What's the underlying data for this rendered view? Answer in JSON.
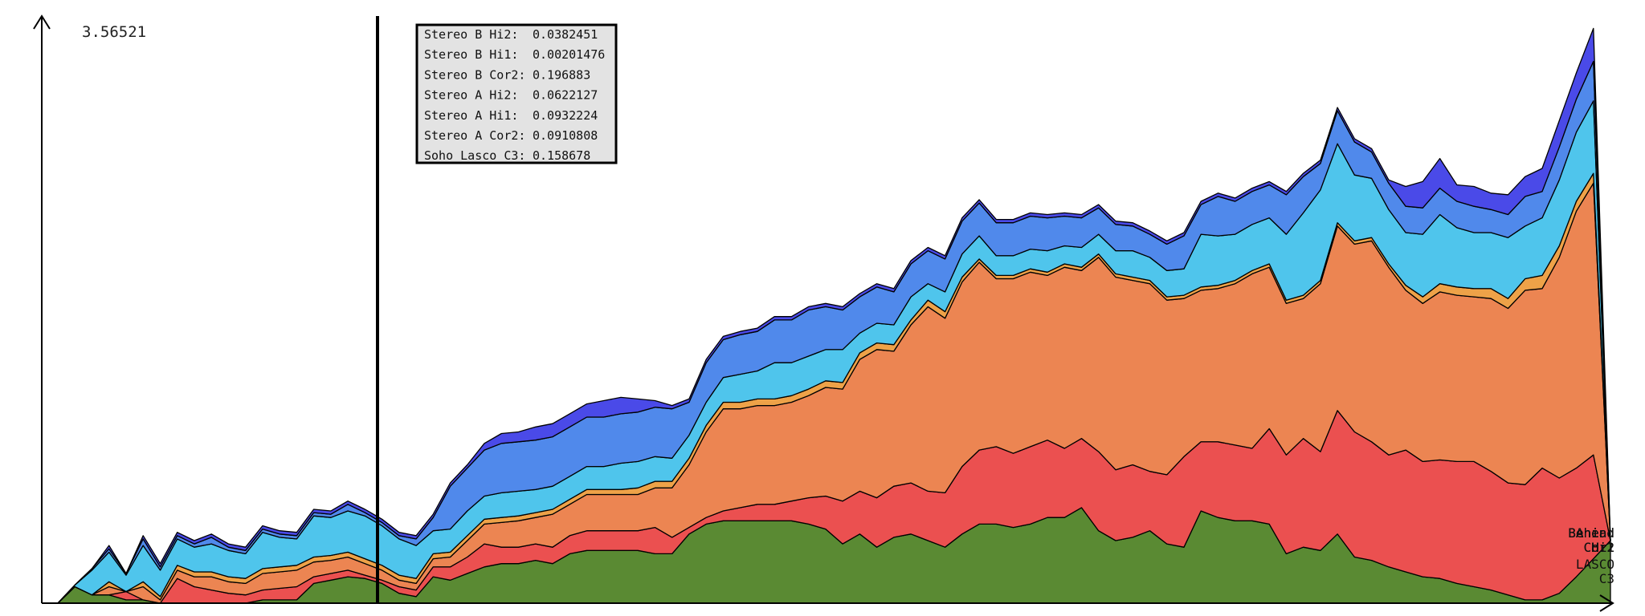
{
  "chart_data": {
    "type": "area",
    "stacked": true,
    "y_max_label": "3.56521",
    "ylim": [
      0,
      3.56521
    ],
    "x_steps": 80,
    "series": [
      {
        "key": "lasco_c3",
        "label_lines": [
          "LASCO",
          "C3"
        ],
        "color": "#5a8a33",
        "values": [
          0,
          0.1,
          0.05,
          0.05,
          0.02,
          0.02,
          0,
          0,
          0,
          0,
          0,
          0,
          0.02,
          0.02,
          0.02,
          0.12,
          0.14,
          0.16,
          0.15,
          0.12,
          0.06,
          0.04,
          0.16,
          0.14,
          0.18,
          0.22,
          0.24,
          0.24,
          0.26,
          0.24,
          0.3,
          0.32,
          0.32,
          0.32,
          0.32,
          0.3,
          0.3,
          0.42,
          0.48,
          0.5,
          0.5,
          0.5,
          0.5,
          0.5,
          0.48,
          0.45,
          0.36,
          0.42,
          0.34,
          0.4,
          0.42,
          0.38,
          0.34,
          0.42,
          0.48,
          0.48,
          0.46,
          0.48,
          0.52,
          0.52,
          0.58,
          0.44,
          0.38,
          0.4,
          0.44,
          0.36,
          0.34,
          0.56,
          0.52,
          0.5,
          0.5,
          0.48,
          0.3,
          0.34,
          0.32,
          0.42,
          0.28,
          0.26,
          0.22,
          0.19,
          0.16,
          0.15,
          0.12,
          0.1,
          0.08,
          0.05,
          0.02,
          0.02,
          0.06,
          0.16,
          0.27,
          0.38
        ]
      },
      {
        "key": "ahead_cor2",
        "label_lines": [
          "Ahead",
          "Cor2"
        ],
        "color": "#eb5050",
        "values": [
          0,
          0,
          0,
          0,
          0.05,
          0,
          0,
          0.15,
          0.1,
          0.08,
          0.06,
          0.05,
          0.06,
          0.07,
          0.08,
          0.04,
          0.04,
          0.04,
          0.02,
          0.02,
          0.04,
          0.04,
          0.06,
          0.08,
          0.1,
          0.14,
          0.1,
          0.1,
          0.1,
          0.1,
          0.11,
          0.12,
          0.12,
          0.12,
          0.12,
          0.16,
          0.1,
          0.04,
          0.04,
          0.06,
          0.08,
          0.1,
          0.1,
          0.12,
          0.16,
          0.2,
          0.26,
          0.26,
          0.3,
          0.31,
          0.31,
          0.3,
          0.33,
          0.41,
          0.45,
          0.47,
          0.45,
          0.47,
          0.47,
          0.42,
          0.42,
          0.48,
          0.43,
          0.44,
          0.36,
          0.42,
          0.55,
          0.42,
          0.46,
          0.46,
          0.44,
          0.58,
          0.6,
          0.66,
          0.6,
          0.75,
          0.76,
          0.72,
          0.68,
          0.74,
          0.7,
          0.72,
          0.74,
          0.76,
          0.72,
          0.68,
          0.7,
          0.8,
          0.7,
          0.66,
          0.63
        ]
      },
      {
        "key": "ahead_hi1",
        "label_lines": [
          "Ahead",
          "Hi1"
        ],
        "color": "#ec8552",
        "values": [
          0,
          0,
          0,
          0.05,
          0,
          0.08,
          0.02,
          0.05,
          0.06,
          0.08,
          0.07,
          0.07,
          0.1,
          0.1,
          0.1,
          0.09,
          0.08,
          0.08,
          0.07,
          0.06,
          0.04,
          0.04,
          0.05,
          0.06,
          0.1,
          0.12,
          0.15,
          0.16,
          0.16,
          0.2,
          0.19,
          0.22,
          0.22,
          0.22,
          0.22,
          0.24,
          0.3,
          0.38,
          0.52,
          0.62,
          0.6,
          0.6,
          0.6,
          0.6,
          0.62,
          0.66,
          0.68,
          0.8,
          0.9,
          0.82,
          0.96,
          1.12,
          1.06,
          1.12,
          1.14,
          1.02,
          1.06,
          1.06,
          1,
          1.1,
          1.02,
          1.18,
          1.17,
          1.12,
          1.14,
          1.06,
          0.96,
          0.92,
          0.93,
          0.98,
          1.06,
          0.98,
          0.92,
          0.85,
          1.02,
          1.12,
          1.14,
          1.22,
          1.14,
          0.97,
          0.96,
          1.02,
          1.01,
          1.0,
          1.05,
          1.06,
          1.18,
          1.09,
          1.34,
          1.56,
          1.65
        ]
      },
      {
        "key": "ahead_hi2",
        "label_lines": [
          "Ahead",
          "Hi2"
        ],
        "color": "#eea248",
        "values": [
          0,
          0,
          0,
          0.03,
          0,
          0.03,
          0.02,
          0.03,
          0.03,
          0.03,
          0.03,
          0.03,
          0.03,
          0.03,
          0.03,
          0.03,
          0.03,
          0.03,
          0.03,
          0.03,
          0.03,
          0.03,
          0.03,
          0.03,
          0.03,
          0.03,
          0.03,
          0.03,
          0.03,
          0.03,
          0.03,
          0.03,
          0.03,
          0.03,
          0.04,
          0.04,
          0.04,
          0.04,
          0.04,
          0.04,
          0.04,
          0.04,
          0.04,
          0.04,
          0.04,
          0.04,
          0.04,
          0.04,
          0.04,
          0.04,
          0.03,
          0.04,
          0.04,
          0.03,
          0.02,
          0.02,
          0.02,
          0.02,
          0.02,
          0.02,
          0.02,
          0.02,
          0.02,
          0.02,
          0.02,
          0.02,
          0.02,
          0.02,
          0.02,
          0.02,
          0.02,
          0.02,
          0.02,
          0.02,
          0.02,
          0.02,
          0.02,
          0.02,
          0.02,
          0.03,
          0.04,
          0.05,
          0.05,
          0.05,
          0.06,
          0.06,
          0.07,
          0.08,
          0.07,
          0.06,
          0.06
        ]
      },
      {
        "key": "behind_cor2",
        "label_lines": [
          "Behind",
          "Cor2"
        ],
        "color": "#4fc5ec",
        "values": [
          0,
          0.01,
          0.15,
          0.18,
          0.1,
          0.22,
          0.16,
          0.16,
          0.15,
          0.17,
          0.16,
          0.15,
          0.22,
          0.18,
          0.16,
          0.25,
          0.23,
          0.25,
          0.26,
          0.24,
          0.22,
          0.2,
          0.14,
          0.14,
          0.15,
          0.14,
          0.15,
          0.15,
          0.14,
          0.14,
          0.14,
          0.14,
          0.14,
          0.16,
          0.16,
          0.15,
          0.14,
          0.14,
          0.14,
          0.15,
          0.17,
          0.17,
          0.22,
          0.2,
          0.2,
          0.19,
          0.2,
          0.12,
          0.12,
          0.12,
          0.14,
          0.1,
          0.12,
          0.14,
          0.14,
          0.12,
          0.12,
          0.12,
          0.13,
          0.11,
          0.12,
          0.12,
          0.14,
          0.16,
          0.14,
          0.16,
          0.16,
          0.32,
          0.3,
          0.28,
          0.28,
          0.28,
          0.4,
          0.5,
          0.55,
          0.48,
          0.4,
          0.36,
          0.33,
          0.32,
          0.38,
          0.42,
          0.36,
          0.34,
          0.34,
          0.37,
          0.32,
          0.35,
          0.4,
          0.42,
          0.44
        ]
      },
      {
        "key": "behind_hi1",
        "label_lines": [
          "Behind",
          "Hi1"
        ],
        "color": "#5089eb",
        "values": [
          0,
          0,
          0.01,
          0.02,
          0.01,
          0.04,
          0.02,
          0.02,
          0.02,
          0.04,
          0.02,
          0.02,
          0.02,
          0.02,
          0.02,
          0.02,
          0.02,
          0.04,
          0.02,
          0.02,
          0.02,
          0.04,
          0.08,
          0.26,
          0.26,
          0.28,
          0.3,
          0.3,
          0.3,
          0.3,
          0.3,
          0.3,
          0.3,
          0.3,
          0.3,
          0.3,
          0.3,
          0.2,
          0.24,
          0.23,
          0.24,
          0.24,
          0.26,
          0.26,
          0.28,
          0.26,
          0.24,
          0.22,
          0.22,
          0.2,
          0.2,
          0.2,
          0.2,
          0.2,
          0.2,
          0.2,
          0.2,
          0.2,
          0.2,
          0.18,
          0.18,
          0.16,
          0.16,
          0.15,
          0.14,
          0.16,
          0.2,
          0.18,
          0.24,
          0.2,
          0.2,
          0.2,
          0.24,
          0.22,
          0.16,
          0.2,
          0.2,
          0.16,
          0.16,
          0.16,
          0.16,
          0.16,
          0.16,
          0.16,
          0.14,
          0.14,
          0.18,
          0.16,
          0.2,
          0.2,
          0.24
        ]
      },
      {
        "key": "behind_hi2",
        "label_lines": [
          "Behind",
          "Hi2"
        ],
        "color": "#4a4ae8",
        "values": [
          0,
          0,
          0,
          0.02,
          0,
          0.02,
          0.02,
          0.02,
          0.02,
          0.02,
          0.02,
          0.02,
          0.02,
          0.02,
          0.02,
          0.02,
          0.02,
          0.02,
          0.02,
          0.02,
          0.02,
          0.02,
          0.02,
          0.02,
          0.02,
          0.04,
          0.06,
          0.06,
          0.08,
          0.08,
          0.08,
          0.08,
          0.1,
          0.1,
          0.08,
          0.04,
          0.02,
          0.02,
          0.02,
          0.02,
          0.02,
          0.02,
          0.02,
          0.02,
          0.02,
          0.02,
          0.02,
          0.02,
          0.02,
          0.02,
          0.02,
          0.02,
          0.02,
          0.02,
          0.02,
          0.02,
          0.02,
          0.02,
          0.02,
          0.02,
          0.02,
          0.02,
          0.02,
          0.02,
          0.02,
          0.02,
          0.02,
          0.02,
          0.02,
          0.02,
          0.02,
          0.02,
          0.02,
          0.02,
          0.02,
          0.02,
          0.02,
          0.02,
          0.02,
          0.12,
          0.16,
          0.18,
          0.1,
          0.12,
          0.1,
          0.12,
          0.12,
          0.14,
          0.16,
          0.16,
          0.2
        ]
      }
    ]
  },
  "tooltip": {
    "rows": [
      {
        "name": "Stereo B Hi2:",
        "value": "0.0382451"
      },
      {
        "name": "Stereo B Hi1:",
        "value": "0.00201476"
      },
      {
        "name": "Stereo B Cor2:",
        "value": "0.196883"
      },
      {
        "name": "Stereo A Hi2:",
        "value": "0.0622127"
      },
      {
        "name": "Stereo A Hi1:",
        "value": "0.0932224"
      },
      {
        "name": "Stereo A Cor2:",
        "value": "0.0910808"
      },
      {
        "name": "Soho Lasco C3:",
        "value": "0.158678"
      }
    ]
  }
}
